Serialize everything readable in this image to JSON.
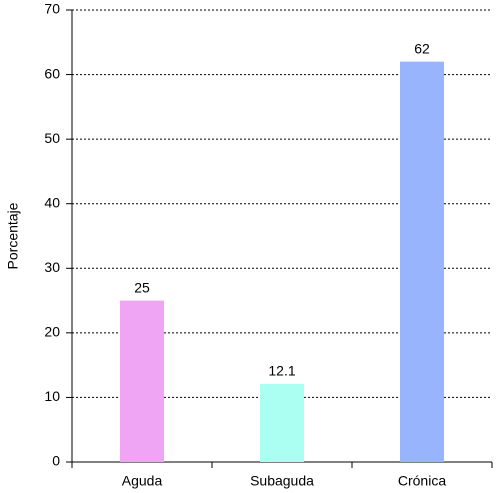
{
  "chart_data": {
    "type": "bar",
    "y_label": "Porcentaje",
    "categories": [
      "Aguda",
      "Subaguda",
      "Crónica"
    ],
    "values": [
      25,
      12.1,
      62
    ],
    "colors": [
      "#f0a4f4",
      "#aafff2",
      "#98b4fc"
    ],
    "ylim": [
      0,
      70
    ],
    "yticks": [
      0,
      10,
      20,
      30,
      40,
      50,
      60,
      70
    ],
    "grid": true
  }
}
